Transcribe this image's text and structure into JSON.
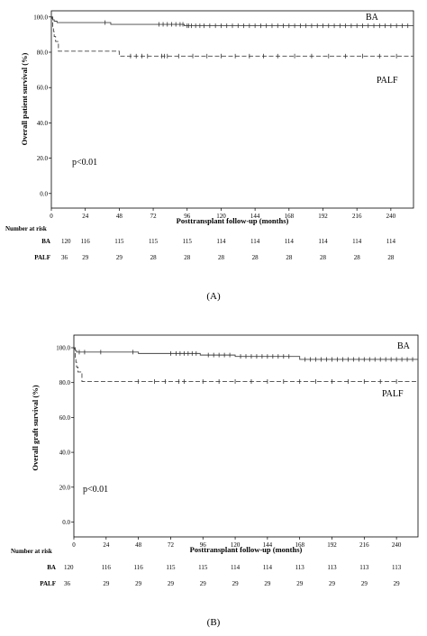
{
  "chart_data": [
    {
      "type": "line",
      "panel_label": "(A)",
      "xlabel": "Posttransplant follow-up (months)",
      "ylabel": "Overall patient survival (%)",
      "x_ticks": [
        0,
        24,
        48,
        72,
        96,
        120,
        144,
        168,
        192,
        216,
        240
      ],
      "y_ticks": [
        "0.0",
        "20.0",
        "40.0",
        "60.0",
        "80.0",
        "100.0"
      ],
      "xlim": [
        0,
        256
      ],
      "ylim": [
        0,
        100
      ],
      "annotation": "p<0.01",
      "series": [
        {
          "name": "BA",
          "style": "solid",
          "steps": [
            [
              0,
              100
            ],
            [
              0.5,
              99.2
            ],
            [
              1,
              98.4
            ],
            [
              2,
              97.6
            ],
            [
              4,
              96.8
            ],
            [
              42,
              95.8
            ],
            [
              94,
              95.0
            ],
            [
              256,
              95.0
            ]
          ],
          "censor_x": [
            38,
            76,
            79,
            82,
            85,
            88,
            91,
            93,
            96,
            97,
            99,
            102,
            105,
            108,
            112,
            116,
            120,
            124,
            128,
            132,
            136,
            140,
            144,
            148,
            152,
            156,
            160,
            164,
            168,
            172,
            176,
            180,
            184,
            188,
            192,
            196,
            200,
            204,
            208,
            212,
            216,
            220,
            224,
            228,
            232,
            236,
            240,
            244,
            248,
            252
          ]
        },
        {
          "name": "PALF",
          "style": "dashed",
          "steps": [
            [
              0,
              100
            ],
            [
              1,
              94.4
            ],
            [
              1.5,
              91.7
            ],
            [
              2,
              88.9
            ],
            [
              3,
              86.1
            ],
            [
              5,
              80.6
            ],
            [
              48,
              77.8
            ],
            [
              256,
              77.8
            ]
          ],
          "censor_x": [
            56,
            60,
            64,
            68,
            78,
            80,
            82,
            90,
            100,
            110,
            120,
            130,
            140,
            150,
            160,
            172,
            184,
            196,
            208,
            220,
            232,
            244
          ]
        }
      ],
      "risk_table": {
        "header": "Number at risk",
        "rows": [
          {
            "label": "BA",
            "values": [
              120,
              116,
              115,
              115,
              115,
              114,
              114,
              114,
              114,
              114,
              114
            ]
          },
          {
            "label": "PALF",
            "values": [
              36,
              29,
              29,
              28,
              28,
              28,
              28,
              28,
              28,
              28,
              28
            ]
          }
        ]
      }
    },
    {
      "type": "line",
      "panel_label": "(B)",
      "xlabel": "Posttransplant follow-up (months)",
      "ylabel": "Overall graft survival (%)",
      "x_ticks": [
        0,
        24,
        48,
        72,
        96,
        120,
        144,
        168,
        192,
        216,
        240
      ],
      "y_ticks": [
        "0.0",
        "20.0",
        "40.0",
        "60.0",
        "80.0",
        "100.0"
      ],
      "xlim": [
        0,
        256
      ],
      "ylim": [
        0,
        100
      ],
      "annotation": "p<0.01",
      "series": [
        {
          "name": "BA",
          "style": "solid",
          "steps": [
            [
              0,
              100
            ],
            [
              0.5,
              99.2
            ],
            [
              1,
              98.4
            ],
            [
              2,
              97.5
            ],
            [
              48,
              96.7
            ],
            [
              94,
              95.8
            ],
            [
              120,
              95.0
            ],
            [
              168,
              93.3
            ],
            [
              256,
              93.3
            ]
          ],
          "censor_x": [
            4,
            8,
            20,
            44,
            72,
            76,
            79,
            82,
            85,
            88,
            91,
            100,
            104,
            108,
            112,
            116,
            124,
            128,
            132,
            136,
            140,
            144,
            148,
            152,
            156,
            160,
            172,
            176,
            180,
            184,
            188,
            192,
            196,
            200,
            204,
            208,
            212,
            216,
            220,
            224,
            228,
            232,
            236,
            240,
            244,
            248,
            252
          ]
        },
        {
          "name": "PALF",
          "style": "dashed",
          "steps": [
            [
              0,
              100
            ],
            [
              1,
              94.4
            ],
            [
              1.5,
              91.7
            ],
            [
              2,
              88.9
            ],
            [
              3,
              86.1
            ],
            [
              6,
              80.6
            ],
            [
              256,
              80.6
            ]
          ],
          "censor_x": [
            48,
            60,
            68,
            78,
            82,
            96,
            108,
            120,
            132,
            144,
            156,
            168,
            180,
            192,
            204,
            216,
            228,
            240
          ]
        }
      ],
      "risk_table": {
        "header": "Number at risk",
        "rows": [
          {
            "label": "BA",
            "values": [
              120,
              116,
              116,
              115,
              115,
              114,
              114,
              113,
              113,
              113,
              113
            ]
          },
          {
            "label": "PALF",
            "values": [
              36,
              29,
              29,
              29,
              29,
              29,
              29,
              29,
              29,
              29,
              29
            ]
          }
        ]
      }
    }
  ]
}
